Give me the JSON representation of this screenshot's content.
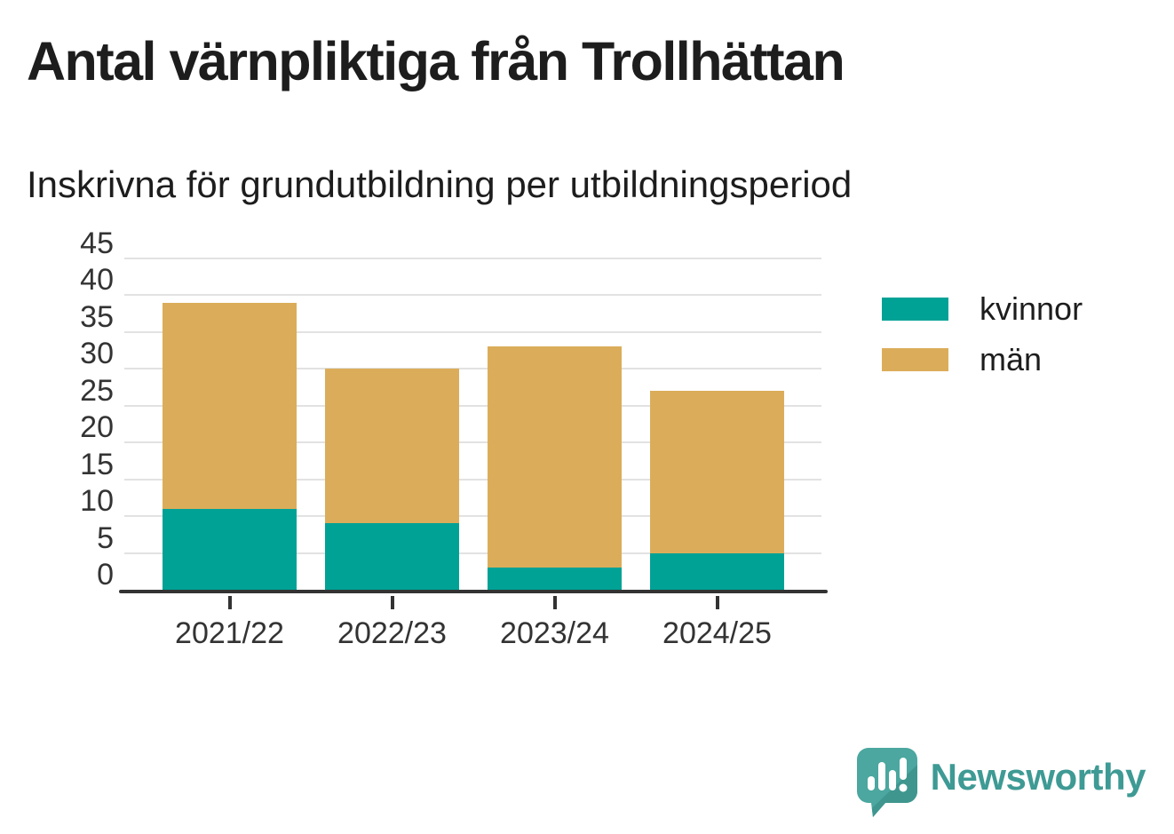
{
  "title": "Antal värnpliktiga från Trollhättan",
  "subtitle": "Inskrivna för grundutbildning per utbildningsperiod",
  "chart_data": {
    "type": "bar",
    "stacked": true,
    "title": "Antal värnpliktiga från Trollhättan",
    "subtitle": "Inskrivna för grundutbildning per utbildningsperiod",
    "categories": [
      "2021/22",
      "2022/23",
      "2023/24",
      "2024/25"
    ],
    "series": [
      {
        "name": "kvinnor",
        "color": "#00a296",
        "values": [
          11,
          9,
          3,
          5
        ]
      },
      {
        "name": "män",
        "color": "#dbad5a",
        "values": [
          28,
          21,
          30,
          22
        ]
      }
    ],
    "totals": [
      39,
      30,
      33,
      27
    ],
    "xlabel": "",
    "ylabel": "",
    "ylim": [
      0,
      45
    ],
    "ytick_step": 5,
    "grid": true,
    "gridline_color": "#e2e2e2",
    "axis_color": "#333333",
    "legend_position": "right"
  },
  "legend": {
    "items": [
      {
        "label": "kvinnor",
        "color": "#00a296"
      },
      {
        "label": "män",
        "color": "#dbad5a"
      }
    ]
  },
  "footer": {
    "brand": "Newsworthy",
    "brand_color": "#3e9a94",
    "logo_icon": "newsworthy-speech-bubble-chart-icon"
  }
}
